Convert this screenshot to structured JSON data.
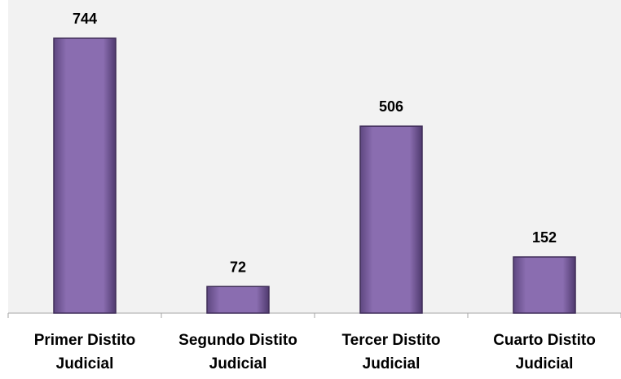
{
  "chart_data": {
    "type": "bar",
    "categories": [
      "Primer Distito Judicial",
      "Segundo Distito Judicial",
      "Tercer Distito Judicial",
      "Cuarto Distito Judicial"
    ],
    "values": [
      744,
      72,
      506,
      152
    ],
    "color": "#8064a2"
  }
}
